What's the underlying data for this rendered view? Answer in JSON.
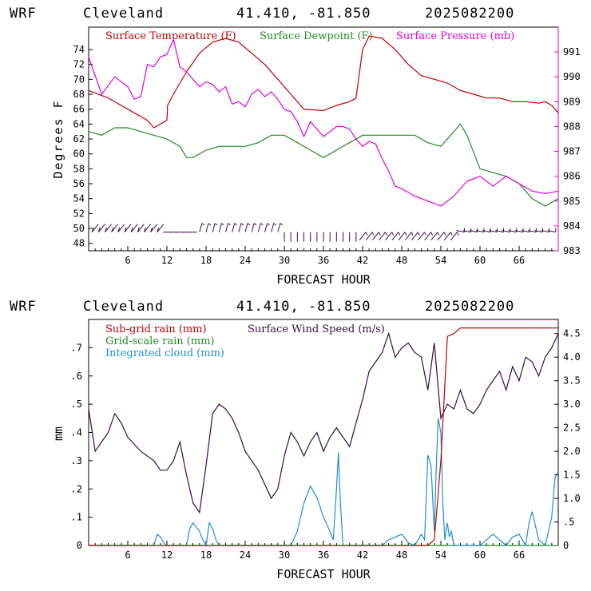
{
  "panel_top": {
    "header": {
      "model": "WRF",
      "location": "Cleveland",
      "coords": "41.410, -81.850",
      "run": "2025082200"
    },
    "legend": [
      {
        "label": "Surface Temperature (F)",
        "color": "#c00000"
      },
      {
        "label": "Surface Dewpoint (F)",
        "color": "#228b22"
      },
      {
        "label": "Surface Pressure (mb)",
        "color": "#e000e0"
      }
    ],
    "ylabel_left": "Degrees F",
    "xlabel": "FORECAST HOUR",
    "left_ticks": [
      "74",
      "72",
      "70",
      "68",
      "66",
      "64",
      "62",
      "60",
      "58",
      "56",
      "54",
      "52",
      "50",
      "48"
    ],
    "right_ticks": [
      "991",
      "990",
      "989",
      "988",
      "987",
      "986",
      "985",
      "984",
      "983"
    ],
    "x_ticks": [
      "6",
      "12",
      "18",
      "24",
      "30",
      "36",
      "42",
      "48",
      "54",
      "60",
      "66"
    ]
  },
  "panel_bottom": {
    "header": {
      "model": "WRF",
      "location": "Cleveland",
      "coords": "41.410, -81.850",
      "run": "2025082200"
    },
    "legend": [
      {
        "label": "Sub-grid rain (mm)",
        "color": "#c00000"
      },
      {
        "label": "Surface Wind Speed (m/s)",
        "color": "#3b0a45"
      },
      {
        "label": "Grid-scale rain (mm)",
        "color": "#228b22"
      },
      {
        "label": "Integrated cloud (mm)",
        "color": "#1e90d6"
      }
    ],
    "ylabel_left": "mm",
    "xlabel": "FORECAST HOUR",
    "left_ticks": [
      ".7",
      ".6",
      ".5",
      ".4",
      ".3",
      ".2",
      ".1",
      "0"
    ],
    "right_ticks": [
      "4.5",
      "4.0",
      "3.5",
      "3.0",
      "2.5",
      "2.0",
      "1.5",
      "1.0",
      ".5",
      "0"
    ],
    "x_ticks": [
      "6",
      "12",
      "18",
      "24",
      "30",
      "36",
      "42",
      "48",
      "54",
      "60",
      "66"
    ]
  },
  "chart_data": [
    {
      "type": "line",
      "title": "WRF Cleveland 41.410, -81.850 2025082200",
      "xlabel": "FORECAST HOUR",
      "ylabel": "Degrees F",
      "xlim": [
        0,
        72
      ],
      "ylim_left": [
        47,
        77
      ],
      "ylim_right": [
        983,
        992
      ],
      "series": [
        {
          "name": "Surface Temperature (F)",
          "axis": "left",
          "x": [
            0,
            3,
            6,
            9,
            10,
            11,
            12,
            12.1,
            13,
            15,
            17,
            19,
            21,
            23,
            25,
            27,
            29,
            31,
            33,
            36,
            38,
            40,
            41,
            42,
            43,
            45,
            47,
            49,
            51,
            53,
            55,
            57,
            59,
            61,
            63,
            65,
            67,
            69,
            70,
            71,
            72
          ],
          "y": [
            68.5,
            67.5,
            66,
            64.5,
            63.5,
            64,
            64.5,
            66.5,
            68,
            71,
            73.5,
            75,
            75.5,
            75,
            73.5,
            72,
            70,
            68,
            66,
            65.8,
            66.5,
            67,
            67.5,
            74,
            75.8,
            75.5,
            74,
            72,
            70.5,
            70,
            69.5,
            68.5,
            68,
            67.5,
            67.5,
            67,
            67,
            66.8,
            67,
            66.5,
            65.5
          ]
        },
        {
          "name": "Surface Dewpoint (F)",
          "axis": "left",
          "x": [
            0,
            2,
            4,
            6,
            8,
            10,
            12,
            14,
            15,
            16,
            18,
            20,
            22,
            24,
            26,
            28,
            30,
            32,
            34,
            36,
            38,
            40,
            42,
            44,
            46,
            48,
            50,
            52,
            54,
            56,
            57,
            58,
            60,
            62,
            64,
            66,
            68,
            70,
            72
          ],
          "y": [
            63,
            62.5,
            63.5,
            63.5,
            63,
            62.5,
            62,
            61,
            59.5,
            59.5,
            60.5,
            61,
            61,
            61,
            61.5,
            62.5,
            62.5,
            61.5,
            60.5,
            59.5,
            60.5,
            61.5,
            62.5,
            62.5,
            62.5,
            62.5,
            62.5,
            61.5,
            61,
            63,
            64,
            62.5,
            58,
            57.5,
            57,
            56,
            54,
            53,
            54
          ]
        },
        {
          "name": "Surface Pressure (mb)",
          "axis": "right",
          "x": [
            0,
            2,
            4,
            6,
            7,
            8,
            9,
            10,
            11,
            12,
            13,
            14,
            15,
            16,
            17,
            18,
            19,
            20,
            21,
            22,
            23,
            24,
            25,
            26,
            27,
            28,
            29,
            30,
            31,
            32,
            33,
            34,
            35,
            36,
            37,
            38,
            39,
            40,
            41,
            42,
            43,
            44,
            45,
            46,
            47,
            48,
            50,
            52,
            54,
            56,
            58,
            60,
            62,
            64,
            66,
            68,
            70,
            72
          ],
          "y": [
            990.8,
            989.3,
            990,
            989.6,
            989.1,
            989.2,
            990.5,
            990.4,
            990.8,
            990.9,
            991.5,
            990.4,
            990.2,
            989.9,
            989.6,
            989.8,
            989.7,
            989.4,
            989.6,
            988.9,
            989.0,
            988.8,
            989.3,
            989.5,
            989.2,
            989.4,
            989.1,
            988.7,
            988.6,
            988.2,
            987.6,
            988.2,
            987.9,
            987.6,
            987.8,
            988.0,
            988.0,
            987.9,
            987.5,
            987.2,
            987.4,
            987.3,
            986.7,
            986.2,
            985.6,
            985.5,
            985.2,
            985.0,
            984.8,
            985.2,
            985.8,
            986.0,
            985.6,
            986.0,
            985.7,
            985.4,
            985.3,
            985.4
          ]
        }
      ],
      "wind_barbs": "row of wind barbs near 50 F every hour; short flags until ~hour 30 then plain staffs, northeasterly style after hour 42"
    },
    {
      "type": "line",
      "title": "WRF Cleveland 41.410, -81.850 2025082200",
      "xlabel": "FORECAST HOUR",
      "ylabel": "mm",
      "xlim": [
        0,
        72
      ],
      "ylim_left": [
        0,
        0.8
      ],
      "ylim_right": [
        0,
        4.8
      ],
      "series": [
        {
          "name": "Sub-grid rain (mm)",
          "axis": "left",
          "x": [
            0,
            52,
            53,
            54,
            55,
            56,
            57,
            58,
            59,
            72
          ],
          "y": [
            0,
            0,
            0.02,
            0.3,
            0.74,
            0.75,
            0.77,
            0.77,
            0.77,
            0.77
          ]
        },
        {
          "name": "Surface Wind Speed (m/s)",
          "axis": "right",
          "x": [
            0,
            1,
            2,
            3,
            4,
            5,
            6,
            8,
            10,
            11,
            12,
            13,
            14,
            15,
            16,
            17,
            18,
            19,
            20,
            21,
            22,
            23,
            24,
            26,
            28,
            29,
            30,
            31,
            32,
            33,
            34,
            35,
            36,
            37,
            38,
            39,
            40,
            41,
            42,
            43,
            44,
            45,
            46,
            47,
            48,
            49,
            50,
            51,
            52,
            53,
            54,
            55,
            56,
            57,
            58,
            59,
            60,
            61,
            62,
            63,
            64,
            65,
            66,
            67,
            68,
            69,
            70,
            71,
            72
          ],
          "y": [
            2.9,
            2.0,
            2.2,
            2.4,
            2.8,
            2.6,
            2.3,
            2.0,
            1.8,
            1.6,
            1.6,
            1.8,
            2.2,
            1.5,
            0.9,
            0.7,
            1.7,
            2.8,
            3.0,
            2.9,
            2.7,
            2.4,
            2.0,
            1.6,
            1.0,
            1.2,
            1.9,
            2.4,
            2.2,
            1.9,
            2.2,
            2.4,
            2.0,
            2.3,
            2.5,
            2.3,
            2.1,
            2.6,
            3.1,
            3.7,
            3.9,
            4.1,
            4.5,
            4.0,
            4.2,
            4.3,
            4.1,
            4.0,
            3.3,
            4.3,
            2.7,
            3.0,
            2.9,
            3.3,
            2.9,
            2.8,
            3.0,
            3.3,
            3.5,
            3.7,
            3.3,
            3.8,
            3.5,
            4.0,
            3.9,
            3.6,
            4.0,
            4.2,
            4.5
          ]
        },
        {
          "name": "Grid-scale rain (mm)",
          "axis": "left",
          "x": [
            0,
            72
          ],
          "y": [
            0,
            0
          ]
        },
        {
          "name": "Integrated cloud (mm)",
          "axis": "left",
          "x": [
            0,
            10,
            10.5,
            11,
            11.5,
            12,
            15,
            15.5,
            16,
            17,
            17.5,
            18,
            18.5,
            19,
            19.5,
            20,
            30,
            31,
            32,
            33,
            34,
            35,
            36,
            37,
            37.5,
            38,
            38.3,
            38.6,
            39,
            42,
            45,
            46,
            48,
            49,
            50,
            51,
            51.5,
            52,
            52.5,
            53,
            53.3,
            53.6,
            54,
            54.3,
            54.6,
            55,
            55.3,
            55.6,
            56,
            60,
            61,
            62,
            63,
            64,
            65,
            66,
            66.5,
            67,
            67.5,
            68,
            69,
            70,
            71,
            71.5,
            72
          ],
          "y": [
            0,
            0,
            0.04,
            0.03,
            0.01,
            0,
            0,
            0.06,
            0.08,
            0.05,
            0.02,
            0,
            0.08,
            0.06,
            0.02,
            0,
            0,
            0,
            0.05,
            0.15,
            0.21,
            0.17,
            0.1,
            0.05,
            0.02,
            0.2,
            0.33,
            0.15,
            0,
            0,
            0,
            0.02,
            0.04,
            0.01,
            0,
            0.04,
            0.02,
            0.32,
            0.28,
            0.05,
            0.28,
            0.45,
            0.4,
            0.15,
            0.02,
            0.08,
            0.03,
            0.05,
            0,
            0,
            0.02,
            0.04,
            0.02,
            0,
            0.03,
            0.04,
            0.02,
            0,
            0.08,
            0.12,
            0.02,
            0,
            0.1,
            0.24,
            0.26
          ]
        }
      ]
    }
  ]
}
